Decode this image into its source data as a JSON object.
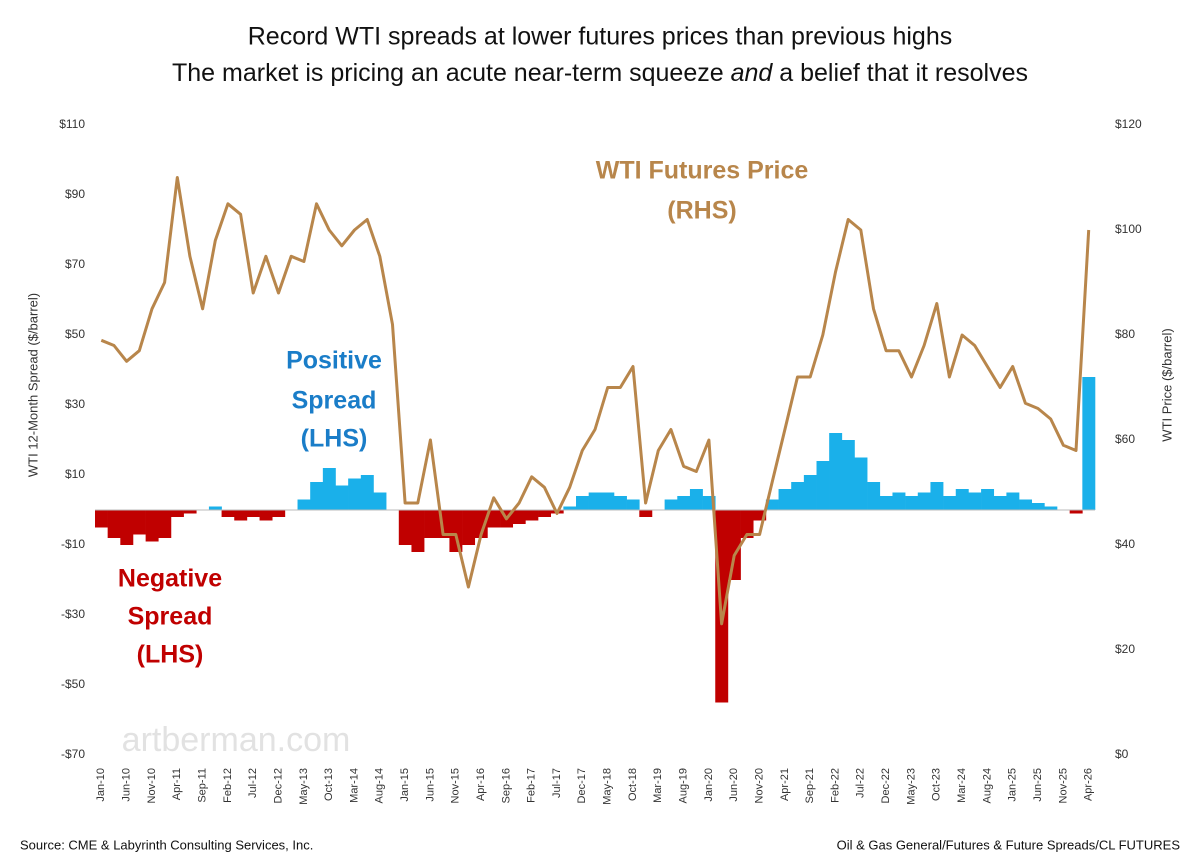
{
  "chart_data": {
    "type": "bar-line",
    "title_line1": "Record WTI spreads at lower futures prices than previous highs",
    "title_line2": [
      "The market is pricing an acute near-term squeeze ",
      "and",
      " a belief that it resolves"
    ],
    "y_label": "WTI 12-Month Spread ($/barrel)",
    "y2_label": "WTI Price ($/barrel)",
    "source": "Source: CME & Labyrinth Consulting Services, Inc.",
    "footer_right": "Oil & Gas General/Futures & Future Spreads/CL FUTURES",
    "watermark": "artberman.com",
    "annotations": {
      "price": [
        "WTI Futures Price",
        "(RHS)"
      ],
      "positive": [
        "Positive",
        "Spread",
        "(LHS)"
      ],
      "negative": [
        "Negative",
        "Spread",
        "(LHS)"
      ]
    },
    "categories": [
      "Jan-10",
      null,
      "Jun-10",
      null,
      "Nov-10",
      null,
      "Apr-11",
      null,
      "Sep-11",
      null,
      "Feb-12",
      null,
      "Jul-12",
      null,
      "Dec-12",
      null,
      "May-13",
      null,
      "Oct-13",
      null,
      "Mar-14",
      null,
      "Aug-14",
      null,
      "Jan-15",
      null,
      "Jun-15",
      null,
      "Nov-15",
      null,
      "Apr-16",
      null,
      "Sep-16",
      null,
      "Feb-17",
      null,
      "Jul-17",
      null,
      "Dec-17",
      null,
      "May-18",
      null,
      "Oct-18",
      null,
      "Mar-19",
      null,
      "Aug-19",
      null,
      "Jan-20",
      null,
      "Jun-20",
      null,
      "Nov-20",
      null,
      "Apr-21",
      null,
      "Sep-21",
      null,
      "Feb-22",
      null,
      "Jul-22",
      null,
      "Dec-22",
      null,
      "May-23",
      null,
      "Oct-23",
      null,
      "Mar-24",
      null,
      "Aug-24",
      null,
      "Jan-25",
      null,
      "Jun-25",
      null,
      "Nov-25",
      null,
      "Apr-26"
    ],
    "series": [
      {
        "name": "WTI 12-Month Spread",
        "type": "bar",
        "color": "#1ab0ea",
        "negative_color": "#c00000",
        "values": [
          -5,
          -8,
          -10,
          -7,
          -9,
          -8,
          -2,
          -1,
          0,
          1,
          -2,
          -3,
          -2,
          -3,
          -2,
          0,
          3,
          8,
          12,
          7,
          9,
          10,
          5,
          0,
          -10,
          -12,
          -8,
          -8,
          -12,
          -10,
          -8,
          -5,
          -5,
          -4,
          -3,
          -2,
          -1,
          1,
          4,
          5,
          5,
          4,
          3,
          -2,
          0,
          3,
          4,
          6,
          4,
          -55,
          -20,
          -8,
          -3,
          3,
          6,
          8,
          10,
          14,
          22,
          20,
          15,
          8,
          4,
          5,
          4,
          5,
          8,
          4,
          6,
          5,
          6,
          4,
          5,
          3,
          2,
          1,
          0,
          -1,
          38
        ]
      },
      {
        "name": "WTI Futures Price",
        "type": "line",
        "axis": "y2",
        "color": "#b8864b",
        "values": [
          79,
          78,
          75,
          77,
          85,
          90,
          110,
          95,
          85,
          98,
          105,
          103,
          88,
          95,
          88,
          95,
          94,
          105,
          100,
          97,
          100,
          102,
          95,
          82,
          48,
          48,
          60,
          42,
          42,
          32,
          42,
          49,
          45,
          48,
          53,
          51,
          46,
          51,
          58,
          62,
          70,
          70,
          74,
          48,
          58,
          62,
          55,
          54,
          60,
          25,
          38,
          42,
          42,
          52,
          62,
          72,
          72,
          80,
          92,
          102,
          100,
          85,
          77,
          77,
          72,
          78,
          86,
          72,
          80,
          78,
          74,
          70,
          74,
          67,
          66,
          64,
          59,
          58,
          100
        ]
      }
    ],
    "ylim": [
      -70,
      110
    ],
    "yticks": [
      {
        "value": 110,
        "label": "$110"
      },
      {
        "value": 90,
        "label": "$90"
      },
      {
        "value": 70,
        "label": "$70"
      },
      {
        "value": 50,
        "label": "$50"
      },
      {
        "value": 30,
        "label": "$30"
      },
      {
        "value": 10,
        "label": "$10"
      },
      {
        "value": -10,
        "label": "-$10"
      },
      {
        "value": -30,
        "label": "-$30"
      },
      {
        "value": -50,
        "label": "-$50"
      },
      {
        "value": -70,
        "label": "-$70"
      }
    ],
    "y2lim": [
      0,
      120
    ],
    "y2ticks": [
      {
        "value": 0,
        "label": "$0"
      },
      {
        "value": 20,
        "label": "$20"
      },
      {
        "value": 40,
        "label": "$40"
      },
      {
        "value": 60,
        "label": "$60"
      },
      {
        "value": 80,
        "label": "$80"
      },
      {
        "value": 100,
        "label": "$100"
      },
      {
        "value": 120,
        "label": "$120"
      }
    ]
  }
}
